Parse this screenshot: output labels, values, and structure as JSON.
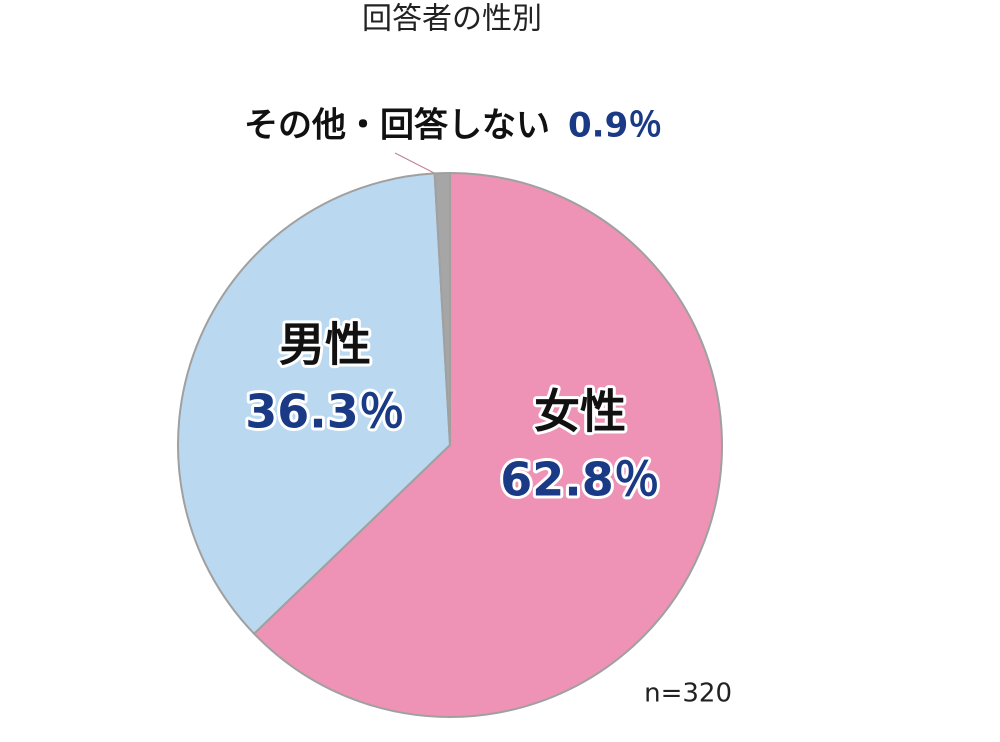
{
  "chart_data": {
    "type": "pie",
    "title": "回答者の性別",
    "categories": [
      "女性",
      "男性",
      "その他・回答しない"
    ],
    "values": [
      62.8,
      36.3,
      0.9
    ],
    "value_labels": [
      "62.8％",
      "36.3％",
      "0.9％"
    ],
    "colors": [
      "#ee93b6",
      "#bad8f0",
      "#a6a6a6"
    ],
    "note": "n=320"
  }
}
